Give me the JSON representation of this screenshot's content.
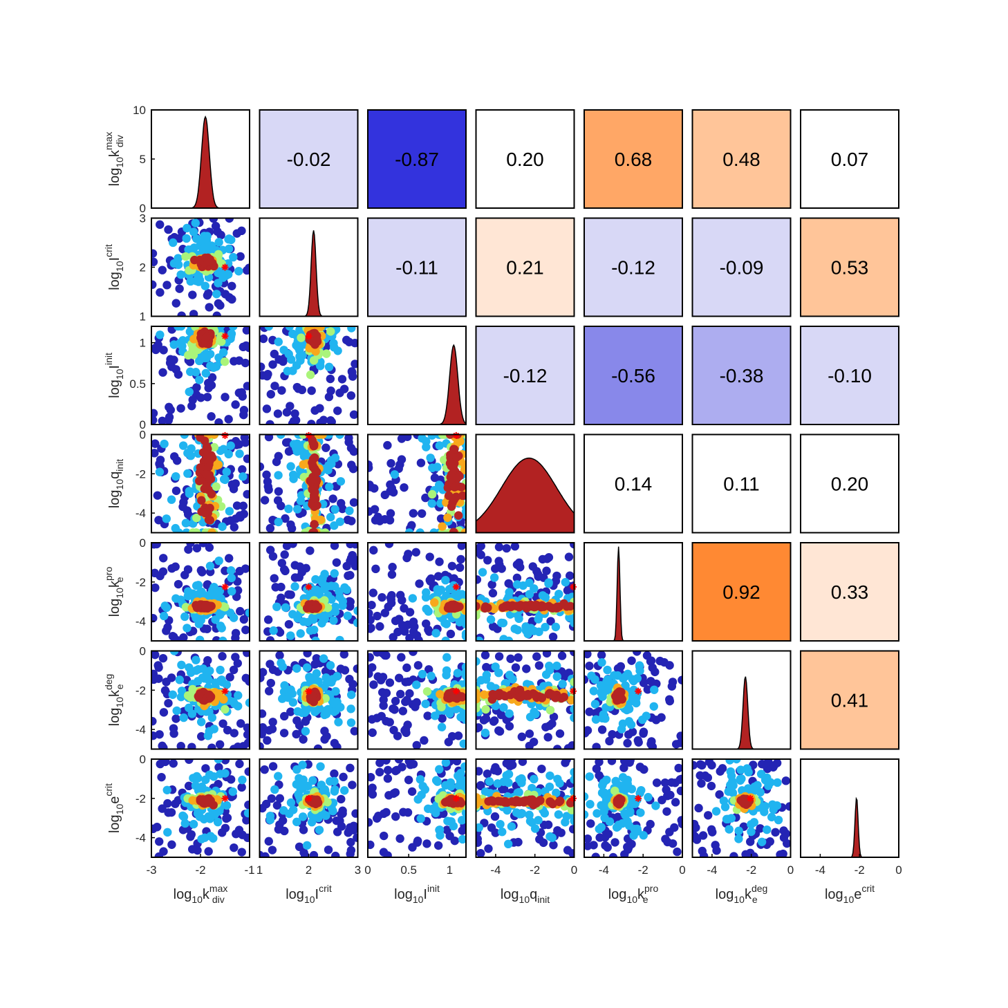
{
  "chart_data": {
    "type": "scatter",
    "layout": "corner-plot",
    "variables": [
      {
        "base": "log",
        "sub": "10",
        "sym": "k",
        "sup": "max",
        "sym_sub": "div"
      },
      {
        "base": "log",
        "sub": "10",
        "sym": "I",
        "sup": "crit",
        "sym_sub": ""
      },
      {
        "base": "log",
        "sub": "10",
        "sym": "I",
        "sup": "init",
        "sym_sub": ""
      },
      {
        "base": "log",
        "sub": "10",
        "sym": "q",
        "sup": "",
        "sym_sub": "init"
      },
      {
        "base": "log",
        "sub": "10",
        "sym": "k",
        "sup": "pro",
        "sym_sub": "e"
      },
      {
        "base": "log",
        "sub": "10",
        "sym": "k",
        "sup": "deg",
        "sym_sub": "e"
      },
      {
        "base": "log",
        "sub": "10",
        "sym": "e",
        "sup": "crit",
        "sym_sub": ""
      }
    ],
    "x_ranges": [
      [
        -3,
        -1
      ],
      [
        1,
        3
      ],
      [
        0,
        1.2
      ],
      [
        -5,
        0
      ],
      [
        -5,
        0
      ],
      [
        -5,
        0
      ],
      [
        -5,
        0
      ]
    ],
    "y_ranges": [
      [
        0,
        10
      ],
      [
        1,
        3
      ],
      [
        0,
        1.2
      ],
      [
        -5,
        0
      ],
      [
        -5,
        0
      ],
      [
        -5,
        0
      ],
      [
        -5,
        0
      ]
    ],
    "x_ticks": [
      [
        "-3",
        "-2",
        "-1"
      ],
      [
        "1",
        "2",
        "3"
      ],
      [
        "0",
        "0.5",
        "1"
      ],
      [
        "-4",
        "-2",
        "0"
      ],
      [
        "-4",
        "-2",
        "0"
      ],
      [
        "-4",
        "-2",
        "0"
      ],
      [
        "-4",
        "-2",
        "0"
      ]
    ],
    "x_tick_values": [
      [
        -3,
        -2,
        -1
      ],
      [
        1,
        2,
        3
      ],
      [
        0,
        0.5,
        1
      ],
      [
        -4,
        -2,
        0
      ],
      [
        -4,
        -2,
        0
      ],
      [
        -4,
        -2,
        0
      ],
      [
        -4,
        -2,
        0
      ]
    ],
    "y_ticks": [
      [
        "10",
        "5",
        "0"
      ],
      [
        "3",
        "2",
        "1"
      ],
      [
        "1",
        "0.5",
        "0"
      ],
      [
        "0",
        "-2",
        "-4"
      ],
      [
        "0",
        "-2",
        "-4"
      ],
      [
        "0",
        "-2",
        "-4"
      ],
      [
        "0",
        "-2",
        "-4"
      ]
    ],
    "y_tick_values": [
      [
        10,
        5,
        0
      ],
      [
        3,
        2,
        1
      ],
      [
        1,
        0.5,
        0
      ],
      [
        0,
        -2,
        -4
      ],
      [
        0,
        -2,
        -4
      ],
      [
        0,
        -2,
        -4
      ],
      [
        0,
        -2,
        -4
      ]
    ],
    "true_values": [
      -1.5,
      2.0,
      1.08,
      -0.05,
      -2.25,
      -2.05,
      -2.0
    ],
    "posterior_modes": [
      -1.9,
      2.1,
      1.05,
      -2.3,
      -3.25,
      -2.3,
      -2.15
    ],
    "posterior_widths": [
      0.08,
      0.05,
      0.05,
      1.4,
      0.07,
      0.12,
      0.08
    ],
    "diag_peaks": [
      9.3,
      2.75,
      0.97,
      -1.2,
      -0.2,
      -1.3,
      -1.95
    ],
    "correlations": [
      {
        "row": 0,
        "col": 1,
        "value": "-0.02",
        "r": -0.02
      },
      {
        "row": 0,
        "col": 2,
        "value": "-0.87",
        "r": -0.87
      },
      {
        "row": 0,
        "col": 3,
        "value": "0.20",
        "r": 0.2
      },
      {
        "row": 0,
        "col": 4,
        "value": "0.68",
        "r": 0.68
      },
      {
        "row": 0,
        "col": 5,
        "value": "0.48",
        "r": 0.48
      },
      {
        "row": 0,
        "col": 6,
        "value": "0.07",
        "r": 0.07
      },
      {
        "row": 1,
        "col": 2,
        "value": "-0.11",
        "r": -0.11
      },
      {
        "row": 1,
        "col": 3,
        "value": "0.21",
        "r": 0.21
      },
      {
        "row": 1,
        "col": 4,
        "value": "-0.12",
        "r": -0.12
      },
      {
        "row": 1,
        "col": 5,
        "value": "-0.09",
        "r": -0.09
      },
      {
        "row": 1,
        "col": 6,
        "value": "0.53",
        "r": 0.53
      },
      {
        "row": 2,
        "col": 3,
        "value": "-0.12",
        "r": -0.12
      },
      {
        "row": 2,
        "col": 4,
        "value": "-0.56",
        "r": -0.56
      },
      {
        "row": 2,
        "col": 5,
        "value": "-0.38",
        "r": -0.38
      },
      {
        "row": 2,
        "col": 6,
        "value": "-0.10",
        "r": -0.1
      },
      {
        "row": 3,
        "col": 4,
        "value": "0.14",
        "r": 0.14
      },
      {
        "row": 3,
        "col": 5,
        "value": "0.11",
        "r": 0.11
      },
      {
        "row": 3,
        "col": 6,
        "value": "0.20",
        "r": 0.2
      },
      {
        "row": 4,
        "col": 5,
        "value": "0.92",
        "r": 0.92
      },
      {
        "row": 4,
        "col": 6,
        "value": "0.33",
        "r": 0.33
      },
      {
        "row": 5,
        "col": 6,
        "value": "0.41",
        "r": 0.41
      }
    ],
    "cell_colors": {
      "-0.02": "#d8d8f6",
      "-0.87": "#3333dd",
      "0.20": "#ffffff",
      "0.68": "#ffa766",
      "0.48": "#ffc599",
      "0.07": "#ffffff",
      "-0.11": "#d8d8f6",
      "0.21": "#ffe6d5",
      "-0.12": "#d8d8f6",
      "-0.09": "#d8d8f6",
      "0.53": "#ffc599",
      "-0.56": "#8888ea",
      "-0.38": "#adadf0",
      "-0.10": "#d8d8f6",
      "0.14": "#ffffff",
      "0.11": "#ffffff",
      "0.92": "#ff8933",
      "0.33": "#ffe6d5",
      "0.41": "#ffc599"
    },
    "point_colors": [
      "#2424b4",
      "#20b4f0",
      "#aaf47a",
      "#f8a81c",
      "#b42424"
    ],
    "marker_color": "#ff0000",
    "hist_fill": "#b22222"
  }
}
